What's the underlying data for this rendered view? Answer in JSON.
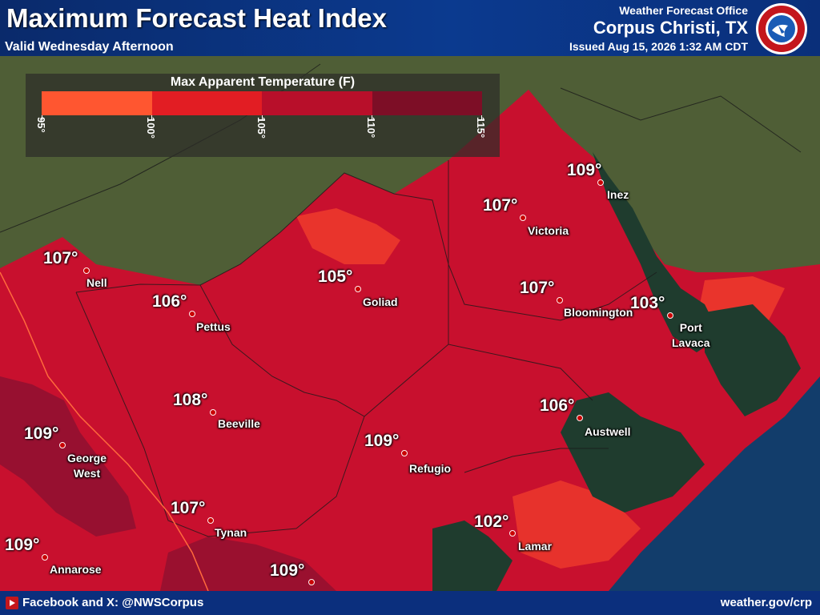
{
  "header": {
    "title": "Maximum Forecast Heat Index",
    "subtitle": "Valid Wednesday Afternoon",
    "office_label": "Weather Forecast Office",
    "office_name": "Corpus Christi, TX",
    "issued": "Issued Aug 15, 2026 1:32 AM CDT",
    "logo_text": "NATIONAL WEATHER SERVICE"
  },
  "legend": {
    "title": "Max Apparent Temperature (F)",
    "ticks": [
      "95°",
      "100°",
      "105°",
      "110°",
      "115°"
    ],
    "colors": [
      "#ff5630",
      "#e21d23",
      "#b80f2a",
      "#7d0e26"
    ]
  },
  "colors": {
    "heat_main": "#c8102e",
    "heat_light": "#ef3b2c",
    "heat_dark": "#8e1030",
    "land": "#4b5a33",
    "water": "#1f3c2e",
    "gulf": "#123d6b",
    "header_bg": "#0b3a8f"
  },
  "cities": [
    {
      "name": "Inez",
      "value": "109°"
    },
    {
      "name": "Victoria",
      "value": "107°"
    },
    {
      "name": "Goliad",
      "value": "105°"
    },
    {
      "name": "Nell",
      "value": "107°"
    },
    {
      "name": "Pettus",
      "value": "106°"
    },
    {
      "name": "Bloomington",
      "value": "107°"
    },
    {
      "name": "Port\nLavaca",
      "value": "103°"
    },
    {
      "name": "Beeville",
      "value": "108°"
    },
    {
      "name": "George\nWest",
      "value": "109°"
    },
    {
      "name": "Refugio",
      "value": "109°"
    },
    {
      "name": "Austwell",
      "value": "106°"
    },
    {
      "name": "Tynan",
      "value": "107°"
    },
    {
      "name": "Lamar",
      "value": "102°"
    },
    {
      "name": "Annarose",
      "value": "109°"
    },
    {
      "name": "",
      "value": "109°"
    }
  ],
  "footer": {
    "social": "Facebook and X: @NWSCorpus",
    "website": "weather.gov/crp",
    "social_icon": "play-icon"
  }
}
